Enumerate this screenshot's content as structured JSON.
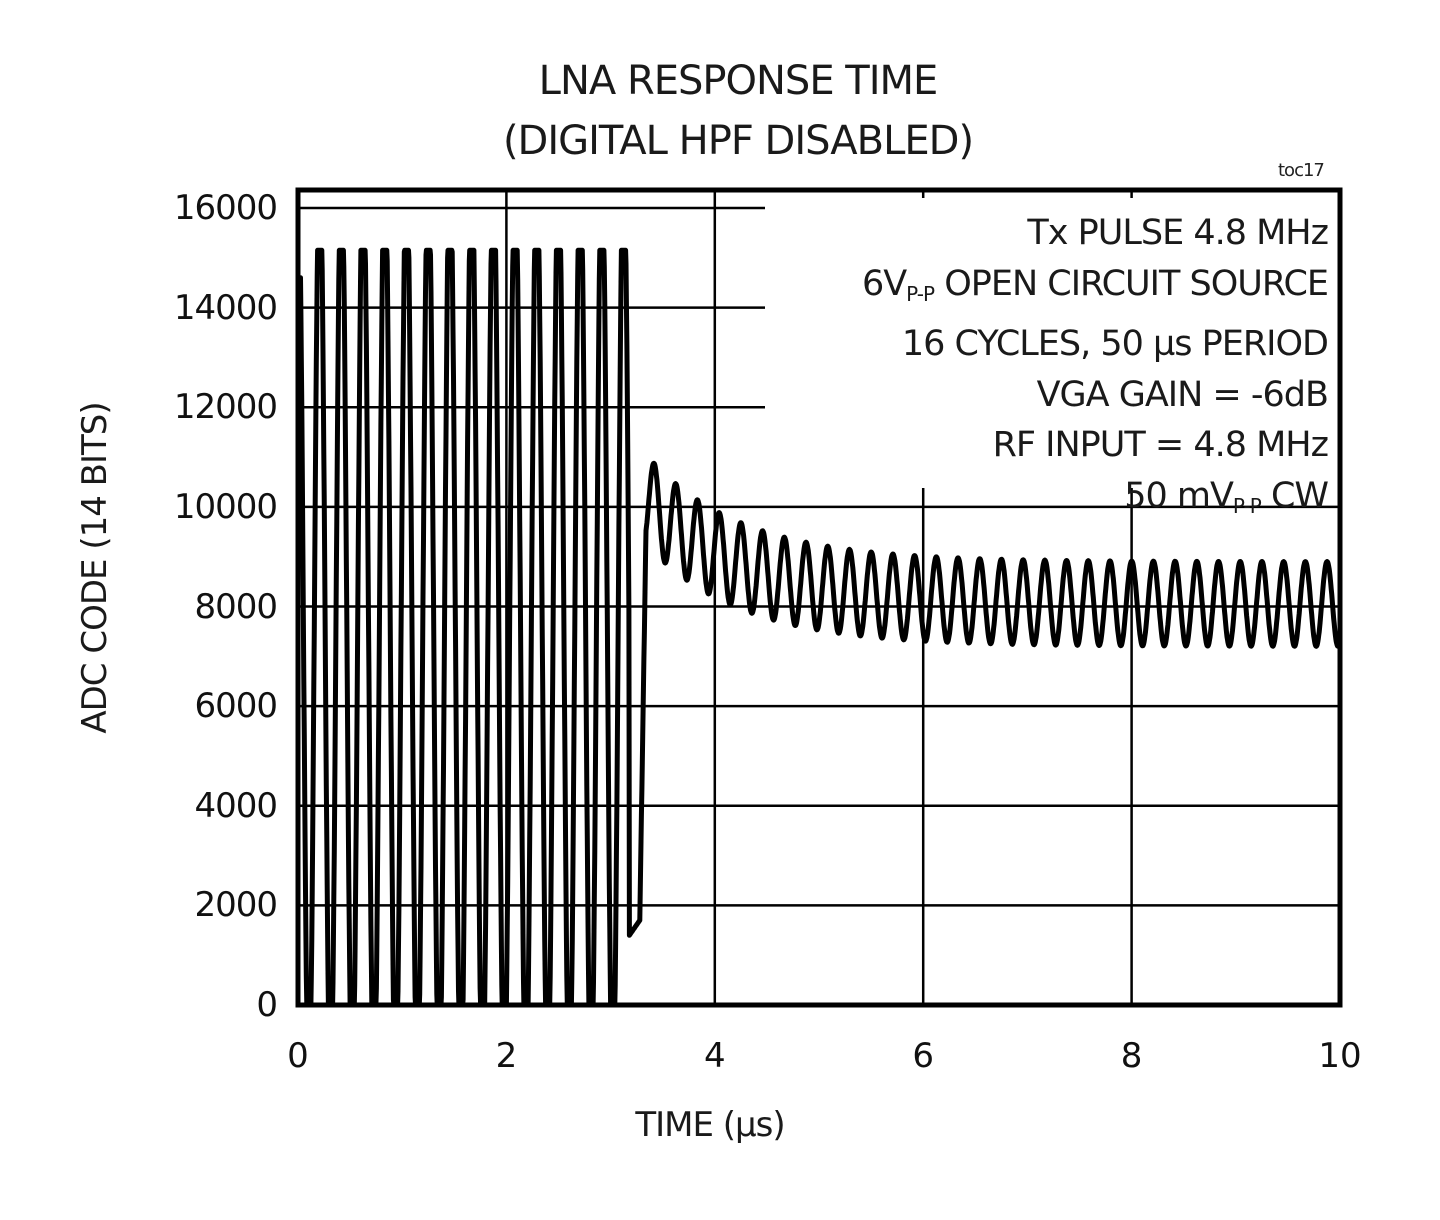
{
  "title_line1": "LNA RESPONSE TIME",
  "title_line2": "(DIGITAL HPF DISABLED)",
  "figure_id": "toc17",
  "annotations": {
    "line1": "Tx PULSE 4.8 MHz",
    "line2_pre": "6V",
    "line2_sub": "P-P",
    "line2_post": " OPEN CIRCUIT SOURCE",
    "line3": "16 CYCLES, 50  µs PERIOD",
    "line4": "VGA GAIN = -6dB",
    "line5": "RF INPUT = 4.8 MHz",
    "line6_pre": "50 mV",
    "line6_sub": "P-P",
    "line6_post": " CW"
  },
  "chart_data": {
    "type": "line",
    "title": "LNA RESPONSE TIME (DIGITAL HPF DISABLED)",
    "xlabel": "TIME (µs)",
    "ylabel": "ADC CODE (14 BITS)",
    "xlim": [
      0,
      10
    ],
    "ylim": [
      0,
      16000
    ],
    "x_ticks": [
      "0",
      "2",
      "4",
      "6",
      "8",
      "10"
    ],
    "y_ticks": [
      "0",
      "2000",
      "4000",
      "6000",
      "8000",
      "10000",
      "12000",
      "14000",
      "16000"
    ],
    "grid": true,
    "legend": null,
    "series": [
      {
        "name": "ADC output",
        "description": "Saturated 4.8 MHz Tx burst (0-3.2 µs) clipping 0 to ~15100, then recovery to CW signal with decaying offset",
        "segments": [
          {
            "x_start": 0.0,
            "x_end": 3.2,
            "behavior": "clipped oscillation",
            "min": 0,
            "max": 15100,
            "freq_mhz": 4.8
          },
          {
            "x_start": 3.2,
            "x_end": 3.35,
            "behavior": "recovery step",
            "from": 1400,
            "to": 9600
          },
          {
            "x_start": 3.35,
            "x_end": 6.0,
            "behavior": "decaying offset oscillation",
            "peak_start": 11000,
            "trough_start": 9200,
            "peak_end": 9300,
            "trough_end": 7300
          },
          {
            "x_start": 6.0,
            "x_end": 10.0,
            "behavior": "steady CW oscillation",
            "min": 7200,
            "max": 8900,
            "freq_mhz": 4.8
          }
        ],
        "sample_points": [
          {
            "x": 0.0,
            "y": 14000
          },
          {
            "x": 0.05,
            "y": 14600
          },
          {
            "x": 0.6,
            "y": 15150
          },
          {
            "x": 3.1,
            "y": 15100
          },
          {
            "x": 3.2,
            "y": 1400
          },
          {
            "x": 3.35,
            "y": 9600
          },
          {
            "x": 3.5,
            "y": 11000
          },
          {
            "x": 3.6,
            "y": 9500
          },
          {
            "x": 4.0,
            "y": 10400
          },
          {
            "x": 4.5,
            "y": 9900
          },
          {
            "x": 5.0,
            "y": 9400
          },
          {
            "x": 6.0,
            "y": 9200
          },
          {
            "x": 6.0,
            "y": 7500
          },
          {
            "x": 8.0,
            "y": 8900
          },
          {
            "x": 8.0,
            "y": 7200
          },
          {
            "x": 10.0,
            "y": 8900
          },
          {
            "x": 10.0,
            "y": 7200
          }
        ]
      }
    ]
  }
}
